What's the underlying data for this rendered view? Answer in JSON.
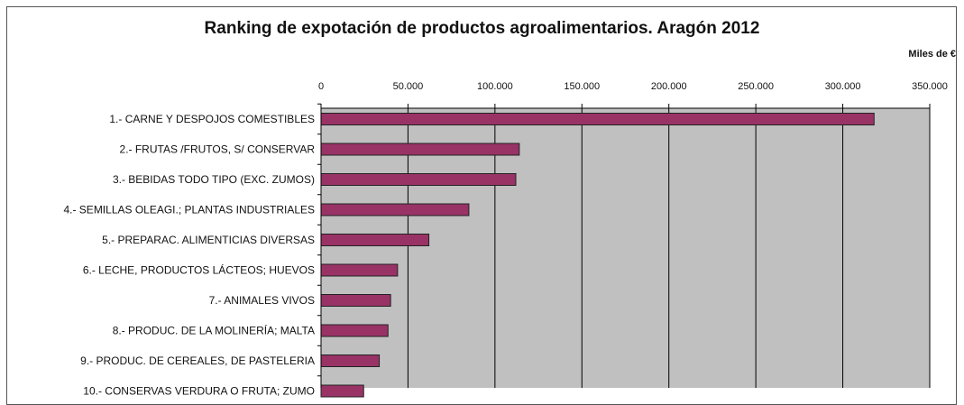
{
  "chart_data": {
    "type": "bar",
    "orientation": "horizontal",
    "title": "Ranking de expotación de productos agroalimentarios. Aragón 2012",
    "unit_label": "Miles de €",
    "xlim": [
      0,
      350000
    ],
    "x_ticks": [
      0,
      50000,
      100000,
      150000,
      200000,
      250000,
      300000,
      350000
    ],
    "x_tick_labels": [
      "0",
      "50.000",
      "100.000",
      "150.000",
      "200.000",
      "250.000",
      "300.000",
      "350.000"
    ],
    "x_axis_position": "top",
    "grid": true,
    "categories": [
      "1.- CARNE Y DESPOJOS COMESTIBLES",
      "2.- FRUTAS /FRUTOS, S/ CONSERVAR",
      "3.- BEBIDAS TODO TIPO (EXC. ZUMOS)",
      "4.- SEMILLAS OLEAGI.; PLANTAS INDUSTRIALES",
      "5.- PREPARAC. ALIMENTICIAS DIVERSAS",
      "6.- LECHE, PRODUCTOS LÁCTEOS; HUEVOS",
      "7.- ANIMALES VIVOS",
      "8.- PRODUC. DE LA MOLINERÍA; MALTA",
      "9.- PRODUC. DE CEREALES, DE PASTELERIA",
      "10.- CONSERVAS VERDURA O FRUTA; ZUMO"
    ],
    "values": [
      318000,
      114000,
      112000,
      85000,
      62000,
      44000,
      40000,
      38500,
      33500,
      24500
    ],
    "colors": {
      "bar_fill": "#993366",
      "bar_stroke": "#222222",
      "plot_background": "#c0c0c0",
      "gridline": "#000000"
    }
  }
}
